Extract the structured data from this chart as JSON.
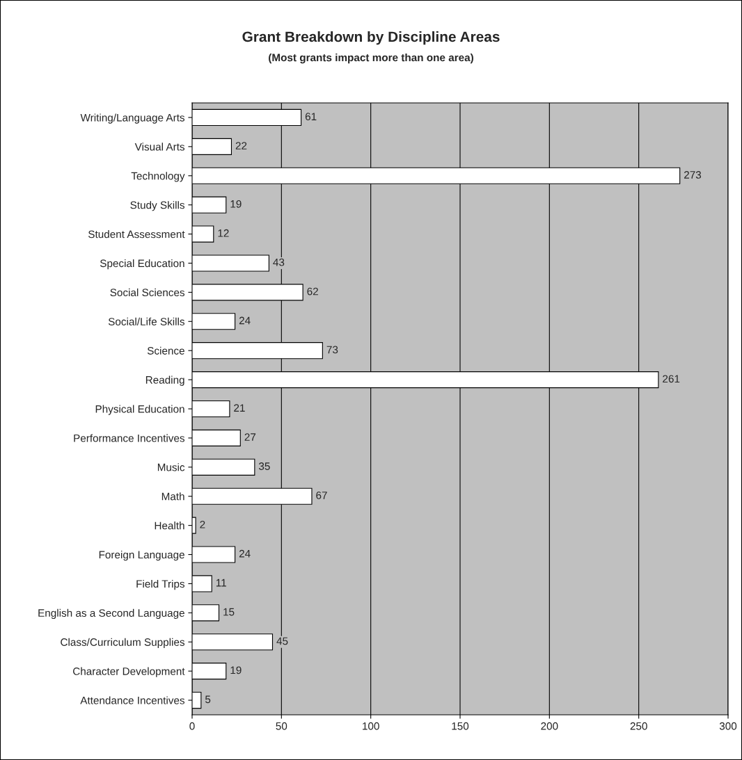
{
  "chart_data": {
    "type": "bar",
    "orientation": "horizontal",
    "title": "Grant Breakdown by Discipline Areas",
    "subtitle": "(Most grants impact more than one area)",
    "categories": [
      "Writing/Language Arts",
      "Visual Arts",
      "Technology",
      "Study Skills",
      "Student Assessment",
      "Special Education",
      "Social Sciences",
      "Social/Life Skills",
      "Science",
      "Reading",
      "Physical Education",
      "Performance Incentives",
      "Music",
      "Math",
      "Health",
      "Foreign Language",
      "Field Trips",
      "English as a Second Language",
      "Class/Curriculum Supplies",
      "Character Development",
      "Attendance Incentives"
    ],
    "values": [
      61,
      22,
      273,
      19,
      12,
      43,
      62,
      24,
      73,
      261,
      21,
      27,
      35,
      67,
      2,
      24,
      11,
      15,
      45,
      19,
      5
    ],
    "color": "#ffffff",
    "data_labels": true,
    "xlim": [
      0,
      300
    ],
    "xticks": [
      0,
      50,
      100,
      150,
      200,
      250,
      300
    ],
    "grid": "x",
    "legend": false
  }
}
